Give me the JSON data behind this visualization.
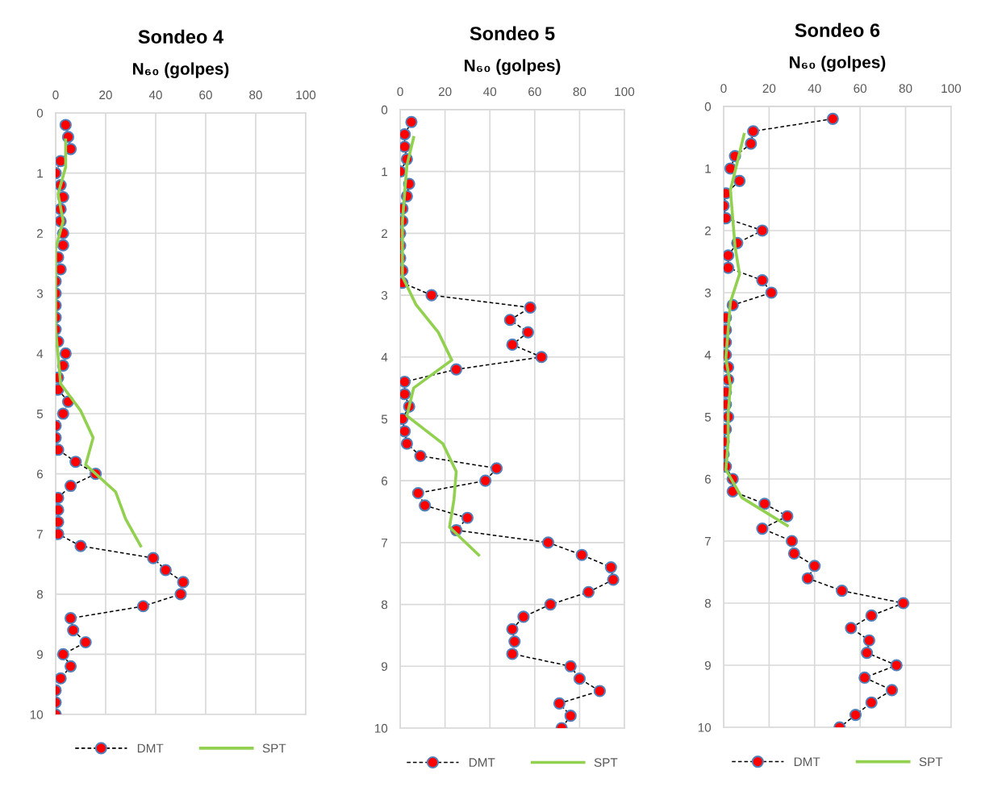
{
  "chart_data": [
    {
      "type": "line",
      "title": "Sondeo 4",
      "xlabel": "N₆₀ (golpes)",
      "xlim": [
        0,
        100
      ],
      "xticks": [
        0,
        20,
        40,
        60,
        80,
        100
      ],
      "ylim": [
        10,
        0
      ],
      "yticks": [
        0,
        1,
        2,
        3,
        4,
        5,
        6,
        7,
        8,
        9,
        10
      ],
      "grid": true,
      "legend": "bottom",
      "series": [
        {
          "name": "DMT",
          "color": "#ff0000",
          "marker": "circle",
          "line_style": "dashed",
          "x": [
            4,
            5,
            6,
            2,
            0,
            2,
            3,
            2,
            2,
            3,
            3,
            1,
            2,
            0,
            0,
            0,
            0,
            0,
            1,
            4,
            3,
            1,
            1,
            5,
            3,
            0,
            0,
            1,
            8,
            16,
            6,
            1,
            1,
            1,
            1,
            10,
            39,
            44,
            51,
            50,
            35,
            6,
            7,
            12,
            3,
            6,
            2,
            0,
            0,
            0
          ],
          "values": [
            0.2,
            0.4,
            0.6,
            0.8,
            1.0,
            1.2,
            1.4,
            1.6,
            1.8,
            2.0,
            2.2,
            2.4,
            2.6,
            2.8,
            3.0,
            3.2,
            3.4,
            3.6,
            3.8,
            4.0,
            4.2,
            4.4,
            4.6,
            4.8,
            5.0,
            5.2,
            5.4,
            5.6,
            5.8,
            6.0,
            6.2,
            6.4,
            6.6,
            6.8,
            7.0,
            7.2,
            7.4,
            7.6,
            7.8,
            8.0,
            8.2,
            8.4,
            8.6,
            8.8,
            9.0,
            9.2,
            9.4,
            9.6,
            9.8,
            10.0
          ]
        },
        {
          "name": "SPT",
          "color": "#92d050",
          "marker": "none",
          "line_style": "solid",
          "x": [
            4,
            4,
            1,
            3,
            0,
            0,
            0,
            0,
            1,
            2,
            10,
            15,
            12,
            24,
            28,
            34
          ],
          "values": [
            0.45,
            0.9,
            1.35,
            1.8,
            2.25,
            2.7,
            3.15,
            3.6,
            4.05,
            4.5,
            4.95,
            5.4,
            5.85,
            6.3,
            6.75,
            7.2
          ]
        }
      ]
    },
    {
      "type": "line",
      "title": "Sondeo 5",
      "xlabel": "N₆₀ (golpes)",
      "xlim": [
        0,
        100
      ],
      "xticks": [
        0,
        20,
        40,
        60,
        80,
        100
      ],
      "ylim": [
        10,
        0
      ],
      "yticks": [
        0,
        1,
        2,
        3,
        4,
        5,
        6,
        7,
        8,
        9,
        10
      ],
      "grid": true,
      "legend": "bottom",
      "series": [
        {
          "name": "DMT",
          "color": "#ff0000",
          "marker": "circle",
          "line_style": "dashed",
          "x": [
            5,
            2,
            2,
            3,
            0,
            4,
            3,
            1,
            1,
            0,
            0,
            0,
            1,
            1,
            14,
            58,
            49,
            57,
            50,
            63,
            25,
            2,
            2,
            4,
            1,
            2,
            3,
            9,
            43,
            38,
            8,
            11,
            30,
            25,
            66,
            81,
            94,
            95,
            84,
            67,
            55,
            50,
            51,
            50,
            76,
            80,
            89,
            71,
            76,
            72
          ],
          "values": [
            0.2,
            0.4,
            0.6,
            0.8,
            1.0,
            1.2,
            1.4,
            1.6,
            1.8,
            2.0,
            2.2,
            2.4,
            2.6,
            2.8,
            3.0,
            3.2,
            3.4,
            3.6,
            3.8,
            4.0,
            4.2,
            4.4,
            4.6,
            4.8,
            5.0,
            5.2,
            5.4,
            5.6,
            5.8,
            6.0,
            6.2,
            6.4,
            6.6,
            6.8,
            7.0,
            7.2,
            7.4,
            7.6,
            7.8,
            8.0,
            8.2,
            8.4,
            8.6,
            8.8,
            9.0,
            9.2,
            9.4,
            9.6,
            9.8,
            10.0
          ]
        },
        {
          "name": "SPT",
          "color": "#92d050",
          "marker": "none",
          "line_style": "solid",
          "x": [
            6,
            3,
            2,
            1,
            1,
            1,
            7,
            17,
            23,
            6,
            3,
            19,
            25,
            24,
            22,
            35
          ],
          "values": [
            0.45,
            0.9,
            1.35,
            1.8,
            2.25,
            2.7,
            3.15,
            3.6,
            4.05,
            4.5,
            4.95,
            5.4,
            5.85,
            6.3,
            6.75,
            7.2
          ]
        }
      ]
    },
    {
      "type": "line",
      "title": "Sondeo 6",
      "xlabel": "N₆₀ (golpes)",
      "xlim": [
        0,
        100
      ],
      "xticks": [
        0,
        20,
        40,
        60,
        80,
        100
      ],
      "ylim": [
        10,
        0
      ],
      "yticks": [
        0,
        1,
        2,
        3,
        4,
        5,
        6,
        7,
        8,
        9,
        10
      ],
      "grid": true,
      "legend": "bottom",
      "series": [
        {
          "name": "DMT",
          "color": "#ff0000",
          "marker": "circle",
          "line_style": "dashed",
          "x": [
            48,
            13,
            12,
            5,
            3,
            7,
            1,
            0,
            1,
            17,
            6,
            2,
            2,
            17,
            21,
            4,
            1,
            1,
            1,
            1,
            2,
            2,
            1,
            1,
            2,
            1,
            0,
            0,
            1,
            4,
            4,
            18,
            28,
            17,
            30,
            31,
            40,
            37,
            52,
            79,
            65,
            56,
            64,
            63,
            76,
            62,
            74,
            65,
            58,
            51
          ],
          "values": [
            0.2,
            0.4,
            0.6,
            0.8,
            1.0,
            1.2,
            1.4,
            1.6,
            1.8,
            2.0,
            2.2,
            2.4,
            2.6,
            2.8,
            3.0,
            3.2,
            3.4,
            3.6,
            3.8,
            4.0,
            4.2,
            4.4,
            4.6,
            4.8,
            5.0,
            5.2,
            5.4,
            5.6,
            5.8,
            6.0,
            6.2,
            6.4,
            6.6,
            6.8,
            7.0,
            7.2,
            7.4,
            7.6,
            7.8,
            8.0,
            8.2,
            8.4,
            8.6,
            8.8,
            9.0,
            9.2,
            9.4,
            9.6,
            9.8,
            10.0
          ]
        },
        {
          "name": "SPT",
          "color": "#92d050",
          "marker": "none",
          "line_style": "solid",
          "x": [
            9,
            6,
            3,
            4,
            5,
            7,
            3,
            2,
            1,
            3,
            2,
            2,
            1,
            8,
            28
          ],
          "values": [
            0.45,
            0.9,
            1.35,
            1.8,
            2.25,
            2.7,
            3.15,
            3.6,
            4.05,
            4.5,
            4.95,
            5.4,
            5.85,
            6.3,
            6.75
          ]
        }
      ]
    }
  ]
}
